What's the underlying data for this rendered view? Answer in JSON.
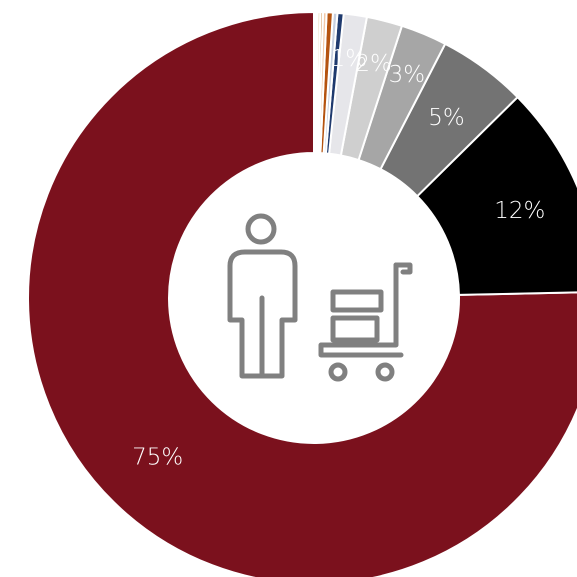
{
  "chart_data": {
    "type": "pie",
    "subtype": "donut",
    "title": "",
    "slices": [
      {
        "label": "75%",
        "value": 75.0,
        "color": "#7b111d",
        "show_label": true
      },
      {
        "label": "12%",
        "value": 12.0,
        "color": "#000000",
        "show_label": true
      },
      {
        "label": "5%",
        "value": 5.0,
        "color": "#737373",
        "show_label": true
      },
      {
        "label": "3%",
        "value": 2.6,
        "color": "#a6a6a6",
        "show_label": true
      },
      {
        "label": "2%",
        "value": 2.0,
        "color": "#cfcfcf",
        "show_label": true
      },
      {
        "label": "1%",
        "value": 1.3,
        "color": "#e6e6ea",
        "show_label": true
      },
      {
        "label": "",
        "value": 0.35,
        "color": "#1f3a6e",
        "show_label": false
      },
      {
        "label": "",
        "value": 0.25,
        "color": "#c7d0e0",
        "show_label": false
      },
      {
        "label": "",
        "value": 0.35,
        "color": "#b5530f",
        "show_label": false
      },
      {
        "label": "",
        "value": 0.2,
        "color": "#f2c9a8",
        "show_label": false
      },
      {
        "label": "",
        "value": 0.15,
        "color": "#d9a46a",
        "show_label": false
      },
      {
        "label": "",
        "value": 0.15,
        "color": "#e8d9b8",
        "show_label": false
      },
      {
        "label": "",
        "value": 0.1,
        "color": "#b08a5c",
        "show_label": false
      },
      {
        "label": "",
        "value": 0.1,
        "color": "#f0e6d6",
        "show_label": false
      }
    ],
    "center_icon": "person-with-luggage-cart-icon",
    "legend": "none"
  },
  "colors": {
    "background": "#ffffff",
    "icon_stroke": "#808080",
    "separator": "#ffffff"
  }
}
